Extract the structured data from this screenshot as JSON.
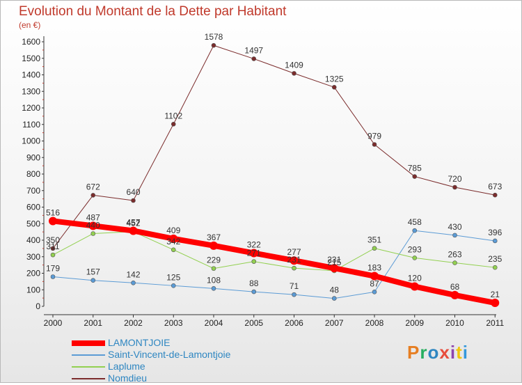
{
  "title": "Evolution du Montant de la Dette par Habitant",
  "unit_label": "(en €)",
  "logo": {
    "text": "Proxiti",
    "colors": [
      "#e67e22",
      "#27ae60",
      "#2e86c1",
      "#e74c3c",
      "#8e44ad",
      "#f1c40f",
      "#3498db"
    ]
  },
  "chart_data": {
    "type": "line",
    "x": [
      "2000",
      "2001",
      "2002",
      "2003",
      "2004",
      "2005",
      "2006",
      "2007",
      "2008",
      "2009",
      "2010",
      "2011"
    ],
    "ylim": [
      0,
      1600
    ],
    "yticks": [
      0,
      100,
      200,
      300,
      400,
      500,
      600,
      700,
      800,
      900,
      1000,
      1100,
      1200,
      1300,
      1400,
      1500,
      1600
    ],
    "grid": false,
    "legend_position": "bottom-left",
    "series": [
      {
        "name": "LAMONTJOIE",
        "color": "#ff0000",
        "values": [
          516,
          487,
          457,
          409,
          367,
          322,
          277,
          231,
          183,
          120,
          68,
          21
        ]
      },
      {
        "name": "Saint-Vincent-de-Lamontjoie",
        "color": "#5b9bd5",
        "values": [
          179,
          157,
          142,
          125,
          108,
          88,
          71,
          48,
          87,
          458,
          430,
          396
        ]
      },
      {
        "name": "Laplume",
        "color": "#92d050",
        "values": [
          311,
          440,
          452,
          342,
          229,
          271,
          231,
          215,
          351,
          293,
          263,
          235
        ]
      },
      {
        "name": "Nomdieu",
        "color": "#7b2c2c",
        "values": [
          350,
          672,
          640,
          1102,
          1578,
          1497,
          1409,
          1325,
          979,
          785,
          720,
          673
        ]
      }
    ]
  }
}
